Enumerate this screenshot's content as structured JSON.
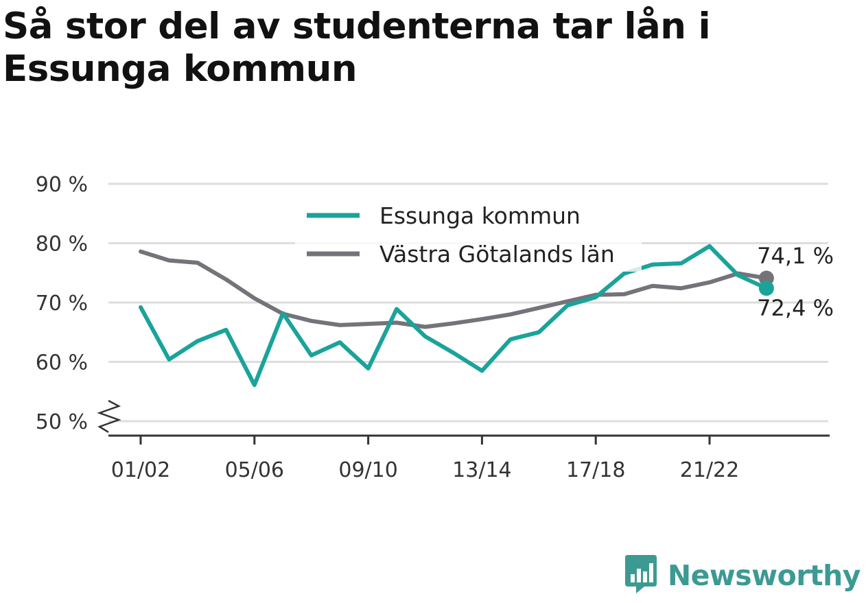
{
  "title": "Så stor del av studenterna tar lån i Essunga kommun",
  "brand": {
    "name": "Newsworthy",
    "icon": "bar-chart-speech-bubble-icon",
    "color": "#3c9a93"
  },
  "chart_data": {
    "type": "line",
    "title": "Så stor del av studenterna tar lån i Essunga kommun",
    "xlabel": "",
    "ylabel": "",
    "ylim": [
      50,
      90
    ],
    "y_ticks": [
      "90 %",
      "80 %",
      "70 %",
      "60 %",
      "50 %"
    ],
    "y_axis_break": true,
    "grid": true,
    "legend_position": "top-center",
    "x": [
      "01/02",
      "02/03",
      "03/04",
      "04/05",
      "05/06",
      "06/07",
      "07/08",
      "08/09",
      "09/10",
      "10/11",
      "11/12",
      "12/13",
      "13/14",
      "14/15",
      "15/16",
      "16/17",
      "17/18",
      "18/19",
      "19/20",
      "20/21",
      "21/22",
      "22/23",
      "23/24"
    ],
    "x_tick_labels": [
      "01/02",
      "05/06",
      "09/10",
      "13/14",
      "17/18",
      "21/22"
    ],
    "series": [
      {
        "name": "Essunga kommun",
        "color": "#1aa39a",
        "values": [
          69.2,
          60.4,
          63.5,
          65.4,
          56.1,
          68.2,
          61.1,
          63.3,
          58.9,
          68.9,
          64.3,
          61.5,
          58.5,
          63.8,
          65.0,
          69.5,
          70.9,
          74.9,
          76.4,
          76.6,
          79.5,
          74.6,
          72.4
        ],
        "end_label": "72,4 %"
      },
      {
        "name": "Västra Götalands län",
        "color": "#75737a",
        "values": [
          78.6,
          77.1,
          76.7,
          73.9,
          70.7,
          68.1,
          66.9,
          66.2,
          66.4,
          66.6,
          65.9,
          66.5,
          67.2,
          68.0,
          69.1,
          70.2,
          71.3,
          71.4,
          72.8,
          72.4,
          73.4,
          74.9,
          74.1
        ],
        "end_label": "74,1 %"
      }
    ]
  }
}
